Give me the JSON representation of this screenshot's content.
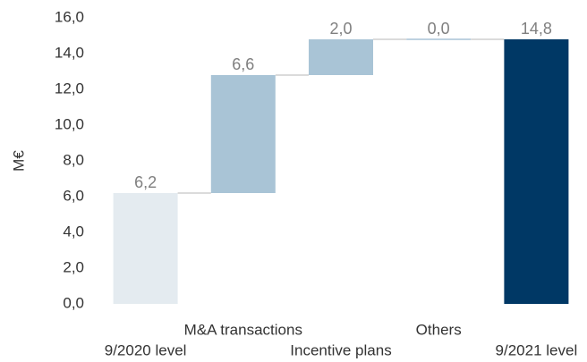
{
  "chart_data": {
    "type": "waterfall",
    "y_label": "M€",
    "categories": [
      "9/2020 level",
      "M&A transactions",
      "Incentive plans",
      "Others",
      "9/2021 level"
    ],
    "values": [
      6.2,
      6.6,
      2.0,
      0.0,
      14.8
    ],
    "value_labels": [
      "6,2",
      "6,6",
      "2,0",
      "0,0",
      "14,8"
    ],
    "colors": [
      "#e4ebf0",
      "#a9c4d6",
      "#a9c4d6",
      "#a9c4d6",
      "#003865"
    ],
    "ylim": [
      0,
      16
    ],
    "yticks": [
      {
        "value": 0,
        "label": "0,0"
      },
      {
        "value": 2,
        "label": "2,0"
      },
      {
        "value": 4,
        "label": "4,0"
      },
      {
        "value": 6,
        "label": "6,0"
      },
      {
        "value": 8,
        "label": "8,0"
      },
      {
        "value": 10,
        "label": "10,0"
      },
      {
        "value": 12,
        "label": "12,0"
      },
      {
        "value": 14,
        "label": "14,0"
      },
      {
        "value": 16,
        "label": "16,0"
      }
    ]
  }
}
